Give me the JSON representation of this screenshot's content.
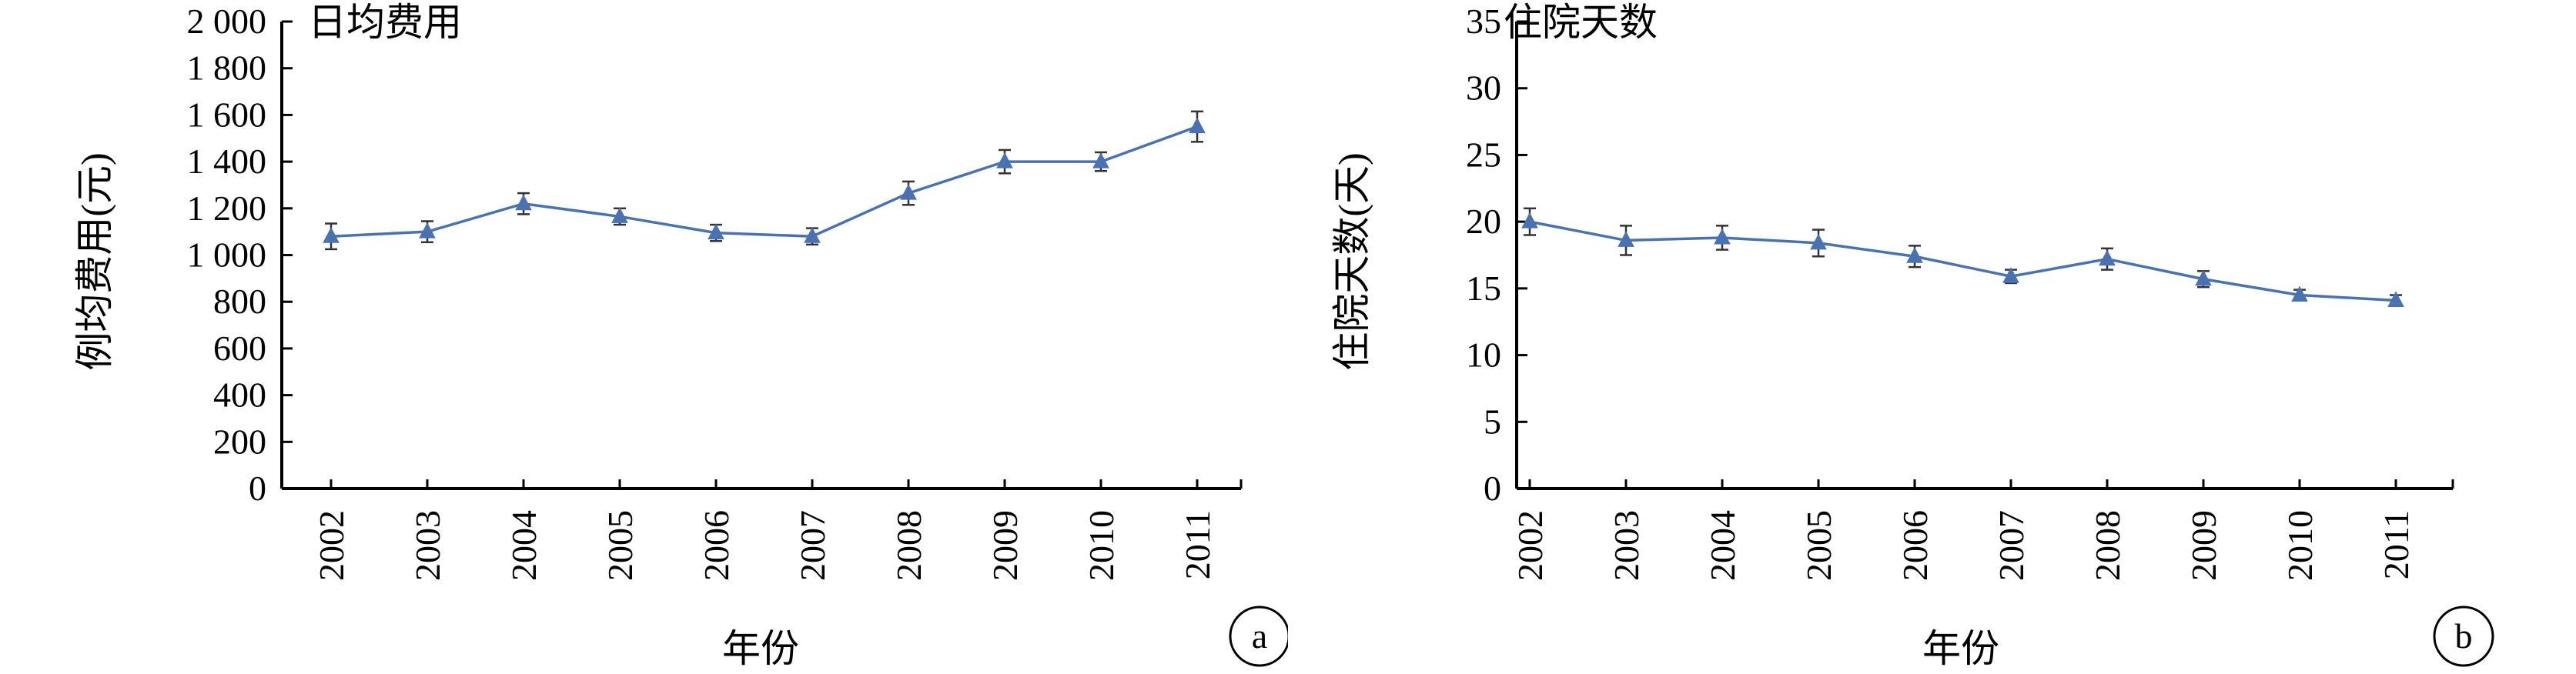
{
  "chart_data": [
    {
      "type": "line",
      "panel_label": "a",
      "title": "日均费用",
      "xlabel": "年份",
      "ylabel": "例均费用(元)",
      "categories": [
        "2002",
        "2003",
        "2004",
        "2005",
        "2006",
        "2007",
        "2008",
        "2009",
        "2010",
        "2011"
      ],
      "ylim": [
        0,
        2000
      ],
      "yticks": [
        0,
        200,
        400,
        600,
        800,
        1000,
        1200,
        1400,
        1600,
        1800,
        2000
      ],
      "ytick_labels": [
        "0",
        "200",
        "400",
        "600",
        "800",
        "1 000",
        "1 200",
        "1 400",
        "1 600",
        "1 800",
        "2 000"
      ],
      "series": [
        {
          "values": [
            1080,
            1100,
            1220,
            1165,
            1095,
            1080,
            1265,
            1400,
            1400,
            1550
          ],
          "error": [
            55,
            45,
            45,
            35,
            35,
            35,
            50,
            50,
            40,
            65
          ],
          "color": "#4a72b0",
          "marker": "triangle"
        }
      ],
      "grid": false
    },
    {
      "type": "line",
      "panel_label": "b",
      "title": "住院天数",
      "xlabel": "年份",
      "ylabel": "住院天数(天)",
      "categories": [
        "2002",
        "2003",
        "2004",
        "2005",
        "2006",
        "2007",
        "2008",
        "2009",
        "2010",
        "2011"
      ],
      "ylim": [
        0,
        35
      ],
      "yticks": [
        0,
        5,
        10,
        15,
        20,
        25,
        30,
        35
      ],
      "ytick_labels": [
        "0",
        "5",
        "10",
        "15",
        "20",
        "25",
        "30",
        "35"
      ],
      "series": [
        {
          "values": [
            20.0,
            18.6,
            18.8,
            18.4,
            17.4,
            15.9,
            17.2,
            15.7,
            14.5,
            14.1
          ],
          "error": [
            1.0,
            1.1,
            0.9,
            1.0,
            0.8,
            0.5,
            0.8,
            0.6,
            0.4,
            0.4
          ],
          "color": "#4a72b0",
          "marker": "triangle"
        }
      ],
      "grid": false
    }
  ]
}
